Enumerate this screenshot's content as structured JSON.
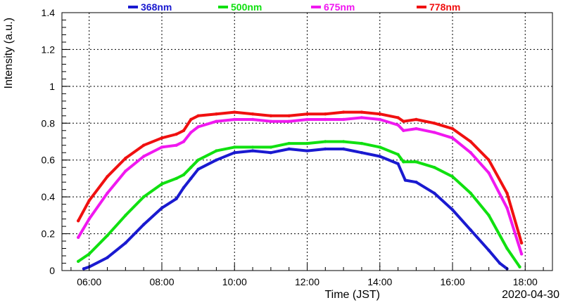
{
  "chart_data": {
    "type": "scatter",
    "xlabel": "Time (JST)",
    "ylabel": "Intensity (a.u.)",
    "date_label": "2020-04-30",
    "xlim": [
      5.25,
      18.75
    ],
    "ylim": [
      0,
      1.4
    ],
    "x_ticks": [
      6,
      8,
      10,
      12,
      14,
      16,
      18
    ],
    "x_tick_labels": [
      "06:00",
      "08:00",
      "10:00",
      "12:00",
      "14:00",
      "16:00",
      "18:00"
    ],
    "y_ticks": [
      0,
      0.2,
      0.4,
      0.6,
      0.8,
      1,
      1.2,
      1.4
    ],
    "y_tick_labels": [
      "0",
      "0.2",
      "0.4",
      "0.6",
      "0.8",
      "1",
      "1.2",
      "1.4"
    ],
    "grid": true,
    "legend_position": "top",
    "series": [
      {
        "name": "368nm",
        "color": "#1a1ad0",
        "points": [
          [
            5.85,
            0.01
          ],
          [
            6.0,
            0.02
          ],
          [
            6.5,
            0.07
          ],
          [
            7.0,
            0.15
          ],
          [
            7.5,
            0.25
          ],
          [
            8.0,
            0.34
          ],
          [
            8.4,
            0.39
          ],
          [
            8.6,
            0.45
          ],
          [
            8.8,
            0.5
          ],
          [
            9.0,
            0.55
          ],
          [
            9.5,
            0.6
          ],
          [
            10.0,
            0.64
          ],
          [
            10.5,
            0.65
          ],
          [
            11.0,
            0.64
          ],
          [
            11.5,
            0.66
          ],
          [
            12.0,
            0.65
          ],
          [
            12.5,
            0.66
          ],
          [
            13.0,
            0.66
          ],
          [
            13.5,
            0.64
          ],
          [
            14.0,
            0.62
          ],
          [
            14.5,
            0.58
          ],
          [
            14.7,
            0.49
          ],
          [
            15.0,
            0.48
          ],
          [
            15.5,
            0.42
          ],
          [
            16.0,
            0.33
          ],
          [
            16.5,
            0.22
          ],
          [
            17.0,
            0.11
          ],
          [
            17.3,
            0.04
          ],
          [
            17.5,
            0.01
          ]
        ]
      },
      {
        "name": "500nm",
        "color": "#10e010",
        "points": [
          [
            5.7,
            0.05
          ],
          [
            6.0,
            0.09
          ],
          [
            6.5,
            0.19
          ],
          [
            7.0,
            0.3
          ],
          [
            7.5,
            0.4
          ],
          [
            8.0,
            0.47
          ],
          [
            8.4,
            0.5
          ],
          [
            8.6,
            0.52
          ],
          [
            8.8,
            0.56
          ],
          [
            9.0,
            0.6
          ],
          [
            9.5,
            0.65
          ],
          [
            10.0,
            0.67
          ],
          [
            10.5,
            0.67
          ],
          [
            11.0,
            0.67
          ],
          [
            11.5,
            0.69
          ],
          [
            12.0,
            0.69
          ],
          [
            12.5,
            0.7
          ],
          [
            13.0,
            0.7
          ],
          [
            13.5,
            0.69
          ],
          [
            14.0,
            0.67
          ],
          [
            14.5,
            0.63
          ],
          [
            14.65,
            0.59
          ],
          [
            15.0,
            0.59
          ],
          [
            15.5,
            0.56
          ],
          [
            16.0,
            0.51
          ],
          [
            16.5,
            0.42
          ],
          [
            17.0,
            0.3
          ],
          [
            17.5,
            0.12
          ],
          [
            17.85,
            0.02
          ]
        ]
      },
      {
        "name": "675nm",
        "color": "#f018f0",
        "points": [
          [
            5.7,
            0.18
          ],
          [
            6.0,
            0.28
          ],
          [
            6.5,
            0.42
          ],
          [
            7.0,
            0.54
          ],
          [
            7.5,
            0.62
          ],
          [
            8.0,
            0.67
          ],
          [
            8.4,
            0.68
          ],
          [
            8.6,
            0.7
          ],
          [
            8.8,
            0.75
          ],
          [
            9.0,
            0.78
          ],
          [
            9.5,
            0.81
          ],
          [
            10.0,
            0.82
          ],
          [
            10.5,
            0.82
          ],
          [
            11.0,
            0.81
          ],
          [
            11.5,
            0.81
          ],
          [
            12.0,
            0.82
          ],
          [
            12.5,
            0.82
          ],
          [
            13.0,
            0.82
          ],
          [
            13.5,
            0.83
          ],
          [
            14.0,
            0.82
          ],
          [
            14.5,
            0.79
          ],
          [
            14.65,
            0.76
          ],
          [
            15.0,
            0.77
          ],
          [
            15.5,
            0.75
          ],
          [
            16.0,
            0.72
          ],
          [
            16.5,
            0.64
          ],
          [
            17.0,
            0.53
          ],
          [
            17.5,
            0.34
          ],
          [
            17.9,
            0.09
          ]
        ]
      },
      {
        "name": "778nm",
        "color": "#f01010",
        "points": [
          [
            5.7,
            0.27
          ],
          [
            6.0,
            0.38
          ],
          [
            6.5,
            0.51
          ],
          [
            7.0,
            0.61
          ],
          [
            7.5,
            0.68
          ],
          [
            8.0,
            0.72
          ],
          [
            8.4,
            0.74
          ],
          [
            8.6,
            0.76
          ],
          [
            8.8,
            0.82
          ],
          [
            9.0,
            0.84
          ],
          [
            9.5,
            0.85
          ],
          [
            10.0,
            0.86
          ],
          [
            10.5,
            0.85
          ],
          [
            11.0,
            0.84
          ],
          [
            11.5,
            0.84
          ],
          [
            12.0,
            0.85
          ],
          [
            12.5,
            0.85
          ],
          [
            13.0,
            0.86
          ],
          [
            13.5,
            0.86
          ],
          [
            14.0,
            0.85
          ],
          [
            14.5,
            0.83
          ],
          [
            14.65,
            0.81
          ],
          [
            15.0,
            0.82
          ],
          [
            15.5,
            0.8
          ],
          [
            16.0,
            0.77
          ],
          [
            16.5,
            0.7
          ],
          [
            17.0,
            0.6
          ],
          [
            17.5,
            0.42
          ],
          [
            17.9,
            0.15
          ]
        ]
      }
    ]
  }
}
